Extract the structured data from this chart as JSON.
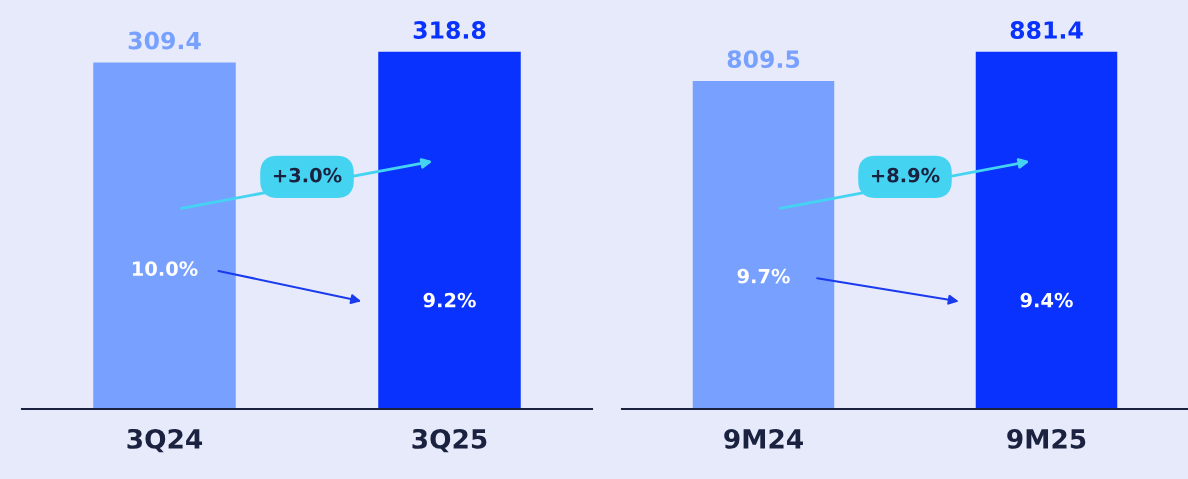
{
  "chart_data": [
    {
      "type": "bar",
      "categories": [
        "3Q24",
        "3Q25"
      ],
      "values": [
        309.4,
        318.8
      ],
      "colors": [
        "#77a0ff",
        "#0a32ff"
      ],
      "data_labels": true,
      "annotations": [
        "10.0%",
        "9.2%",
        "+3.0%"
      ]
    },
    {
      "type": "bar",
      "categories": [
        "9M24",
        "9M25"
      ],
      "values": [
        809.5,
        881.4
      ],
      "colors": [
        "#77a0ff",
        "#0a32ff"
      ],
      "data_labels": true,
      "annotations": [
        "9.7%",
        "9.4%",
        "+8.9%"
      ]
    }
  ]
}
